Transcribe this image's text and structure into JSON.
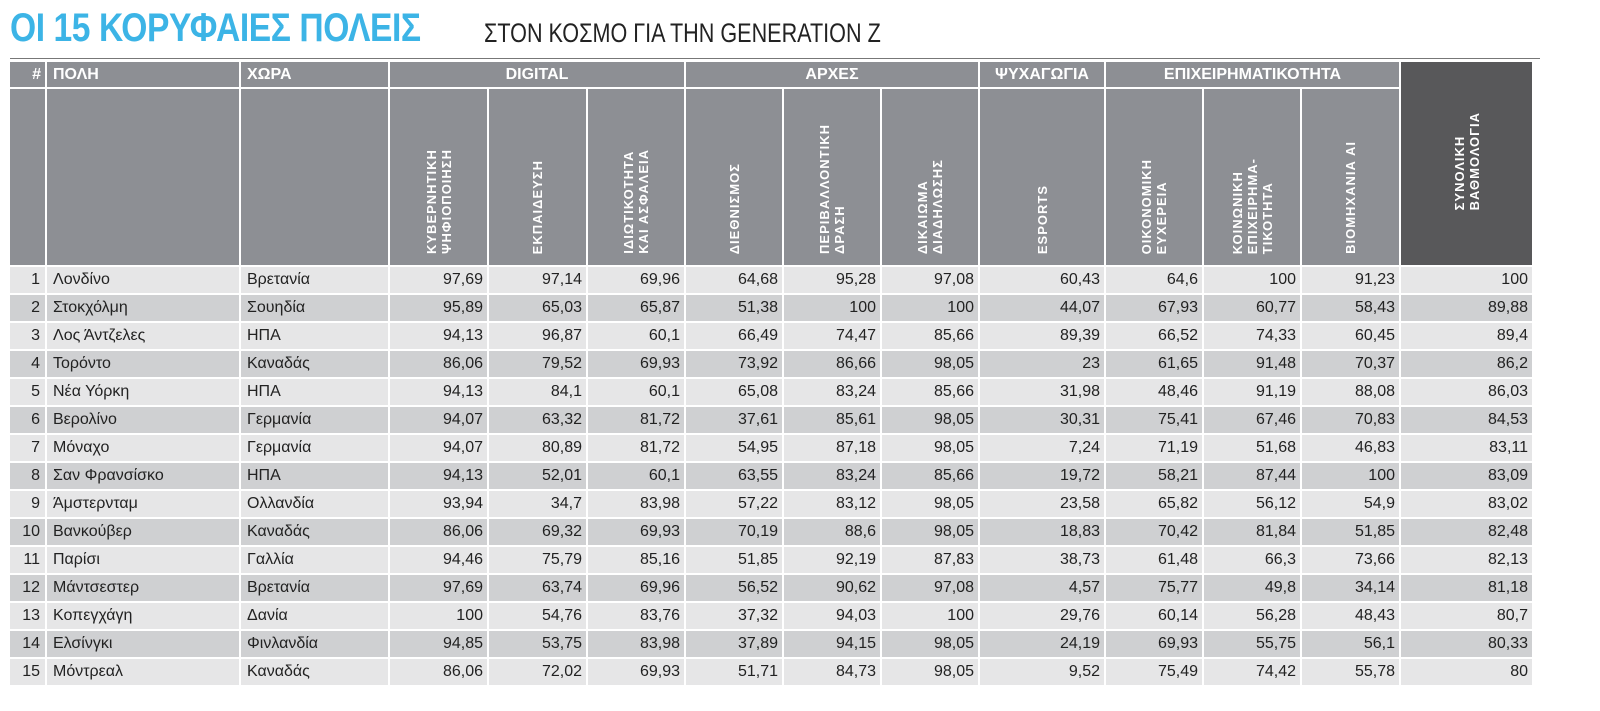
{
  "title": "ΟΙ 15 ΚΟΡΥΦΑΙΕΣ ΠΟΛΕΙΣ",
  "subtitle": "ΣΤΟΝ ΚΟΣΜΟ ΓΙΑ ΤΗΝ GENERATION Z",
  "colors": {
    "title": "#3cb4e6",
    "header": "#8d8f94",
    "total_header": "#58585a",
    "row_odd": "#e6e6e7",
    "row_even": "#cfd0d2"
  },
  "header": {
    "rank": "#",
    "city": "ΠΟΛΗ",
    "country": "ΧΩΡΑ",
    "groups": [
      "DIGITAL",
      "ΑΡΧΕΣ",
      "ΨΥΧΑΓΩΓΙΑ",
      "ΕΠΙΧΕΙΡΗΜΑΤΙΚΟΤΗΤΑ"
    ],
    "columns": [
      "ΚΥΒΕΡΝΗΤΙΚΗ\nΨΗΦΙΟΠΟΙΗΣΗ",
      "ΕΚΠΑΙΔΕΥΣΗ",
      "ΙΔΙΩΤΙΚΟΤΗΤΑ\nΚΑΙ ΑΣΦΑΛΕΙΑ",
      "ΔΙΕΘΝΙΣΜΟΣ",
      "ΠΕΡΙΒΑΛΛΟΝΤΙΚΗ\nΔΡΑΣΗ",
      "ΔΙΚΑΙΩΜΑ\nΔΙΑΔΗΛΩΣΗΣ",
      "ESPORTS",
      "ΟΙΚΟΝΟΜΙΚΗ\nΕΥΧΕΡΕΙΑ",
      "ΚΟΙΝΩΝΙΚΗ\nΕΠΙΧΕΙΡΗΜΑ-\nΤΙΚΟΤΗΤΑ",
      "ΒΙΟΜΗΧΑΝΙΑ ΑΙ"
    ],
    "total": "ΣΥΝΟΛΙΚΗ\nΒΑΘΜΟΛΟΓΙΑ"
  },
  "rows": [
    {
      "rank": "1",
      "city": "Λονδίνο",
      "country": "Βρετανία",
      "values": [
        "97,69",
        "97,14",
        "69,96",
        "64,68",
        "95,28",
        "97,08",
        "60,43",
        "64,6",
        "100",
        "91,23"
      ],
      "total": "100"
    },
    {
      "rank": "2",
      "city": "Στοκχόλμη",
      "country": "Σουηδία",
      "values": [
        "95,89",
        "65,03",
        "65,87",
        "51,38",
        "100",
        "100",
        "44,07",
        "67,93",
        "60,77",
        "58,43"
      ],
      "total": "89,88"
    },
    {
      "rank": "3",
      "city": "Λος Άντζελες",
      "country": "ΗΠΑ",
      "values": [
        "94,13",
        "96,87",
        "60,1",
        "66,49",
        "74,47",
        "85,66",
        "89,39",
        "66,52",
        "74,33",
        "60,45"
      ],
      "total": "89,4"
    },
    {
      "rank": "4",
      "city": "Τορόντο",
      "country": "Καναδάς",
      "values": [
        "86,06",
        "79,52",
        "69,93",
        "73,92",
        "86,66",
        "98,05",
        "23",
        "61,65",
        "91,48",
        "70,37"
      ],
      "total": "86,2"
    },
    {
      "rank": "5",
      "city": "Νέα Υόρκη",
      "country": "ΗΠΑ",
      "values": [
        "94,13",
        "84,1",
        "60,1",
        "65,08",
        "83,24",
        "85,66",
        "31,98",
        "48,46",
        "91,19",
        "88,08"
      ],
      "total": "86,03"
    },
    {
      "rank": "6",
      "city": "Βερολίνο",
      "country": "Γερμανία",
      "values": [
        "94,07",
        "63,32",
        "81,72",
        "37,61",
        "85,61",
        "98,05",
        "30,31",
        "75,41",
        "67,46",
        "70,83"
      ],
      "total": "84,53"
    },
    {
      "rank": "7",
      "city": "Μόναχο",
      "country": "Γερμανία",
      "values": [
        "94,07",
        "80,89",
        "81,72",
        "54,95",
        "87,18",
        "98,05",
        "7,24",
        "71,19",
        "51,68",
        "46,83"
      ],
      "total": "83,11"
    },
    {
      "rank": "8",
      "city": "Σαν Φρανσίσκο",
      "country": "ΗΠΑ",
      "values": [
        "94,13",
        "52,01",
        "60,1",
        "63,55",
        "83,24",
        "85,66",
        "19,72",
        "58,21",
        "87,44",
        "100"
      ],
      "total": "83,09"
    },
    {
      "rank": "9",
      "city": "Άμστερνταμ",
      "country": "Ολλανδία",
      "values": [
        "93,94",
        "34,7",
        "83,98",
        "57,22",
        "83,12",
        "98,05",
        "23,58",
        "65,82",
        "56,12",
        "54,9"
      ],
      "total": "83,02"
    },
    {
      "rank": "10",
      "city": "Βανκούβερ",
      "country": "Καναδάς",
      "values": [
        "86,06",
        "69,32",
        "69,93",
        "70,19",
        "88,6",
        "98,05",
        "18,83",
        "70,42",
        "81,84",
        "51,85"
      ],
      "total": "82,48"
    },
    {
      "rank": "11",
      "city": "Παρίσι",
      "country": "Γαλλία",
      "values": [
        "94,46",
        "75,79",
        "85,16",
        "51,85",
        "92,19",
        "87,83",
        "38,73",
        "61,48",
        "66,3",
        "73,66"
      ],
      "total": "82,13"
    },
    {
      "rank": "12",
      "city": "Μάντσεστερ",
      "country": "Βρετανία",
      "values": [
        "97,69",
        "63,74",
        "69,96",
        "56,52",
        "90,62",
        "97,08",
        "4,57",
        "75,77",
        "49,8",
        "34,14"
      ],
      "total": "81,18"
    },
    {
      "rank": "13",
      "city": "Κοπεγχάγη",
      "country": "Δανία",
      "values": [
        "100",
        "54,76",
        "83,76",
        "37,32",
        "94,03",
        "100",
        "29,76",
        "60,14",
        "56,28",
        "48,43"
      ],
      "total": "80,7"
    },
    {
      "rank": "14",
      "city": "Ελσίνγκι",
      "country": "Φινλανδία",
      "values": [
        "94,85",
        "53,75",
        "83,98",
        "37,89",
        "94,15",
        "98,05",
        "24,19",
        "69,93",
        "55,75",
        "56,1"
      ],
      "total": "80,33"
    },
    {
      "rank": "15",
      "city": "Μόντρεαλ",
      "country": "Καναδάς",
      "values": [
        "86,06",
        "72,02",
        "69,93",
        "51,71",
        "84,73",
        "98,05",
        "9,52",
        "75,49",
        "74,42",
        "55,78"
      ],
      "total": "80"
    }
  ]
}
